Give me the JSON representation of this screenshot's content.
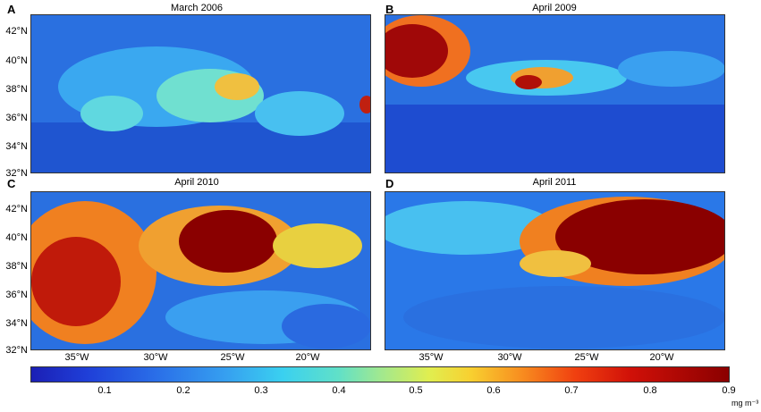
{
  "panels": [
    {
      "letter": "A",
      "title": "March  2006"
    },
    {
      "letter": "B",
      "title": "April  2009"
    },
    {
      "letter": "C",
      "title": "April  2010"
    },
    {
      "letter": "D",
      "title": "April  2011"
    }
  ],
  "lat_labels": [
    "42°N",
    "40°N",
    "38°N",
    "36°N",
    "34°N",
    "32°N"
  ],
  "lon_labels": [
    "35°W",
    "30°W",
    "25°W",
    "20°W"
  ],
  "colorbar": {
    "ticks": [
      "0.1",
      "0.2",
      "0.3",
      "0.4",
      "0.5",
      "0.6",
      "0.7",
      "0.8",
      "0.9"
    ],
    "unit": "mg m⁻³"
  },
  "colors": {
    "low": "#1b1fb5",
    "mid": "#36c0f0",
    "high": "#8a0000"
  }
}
